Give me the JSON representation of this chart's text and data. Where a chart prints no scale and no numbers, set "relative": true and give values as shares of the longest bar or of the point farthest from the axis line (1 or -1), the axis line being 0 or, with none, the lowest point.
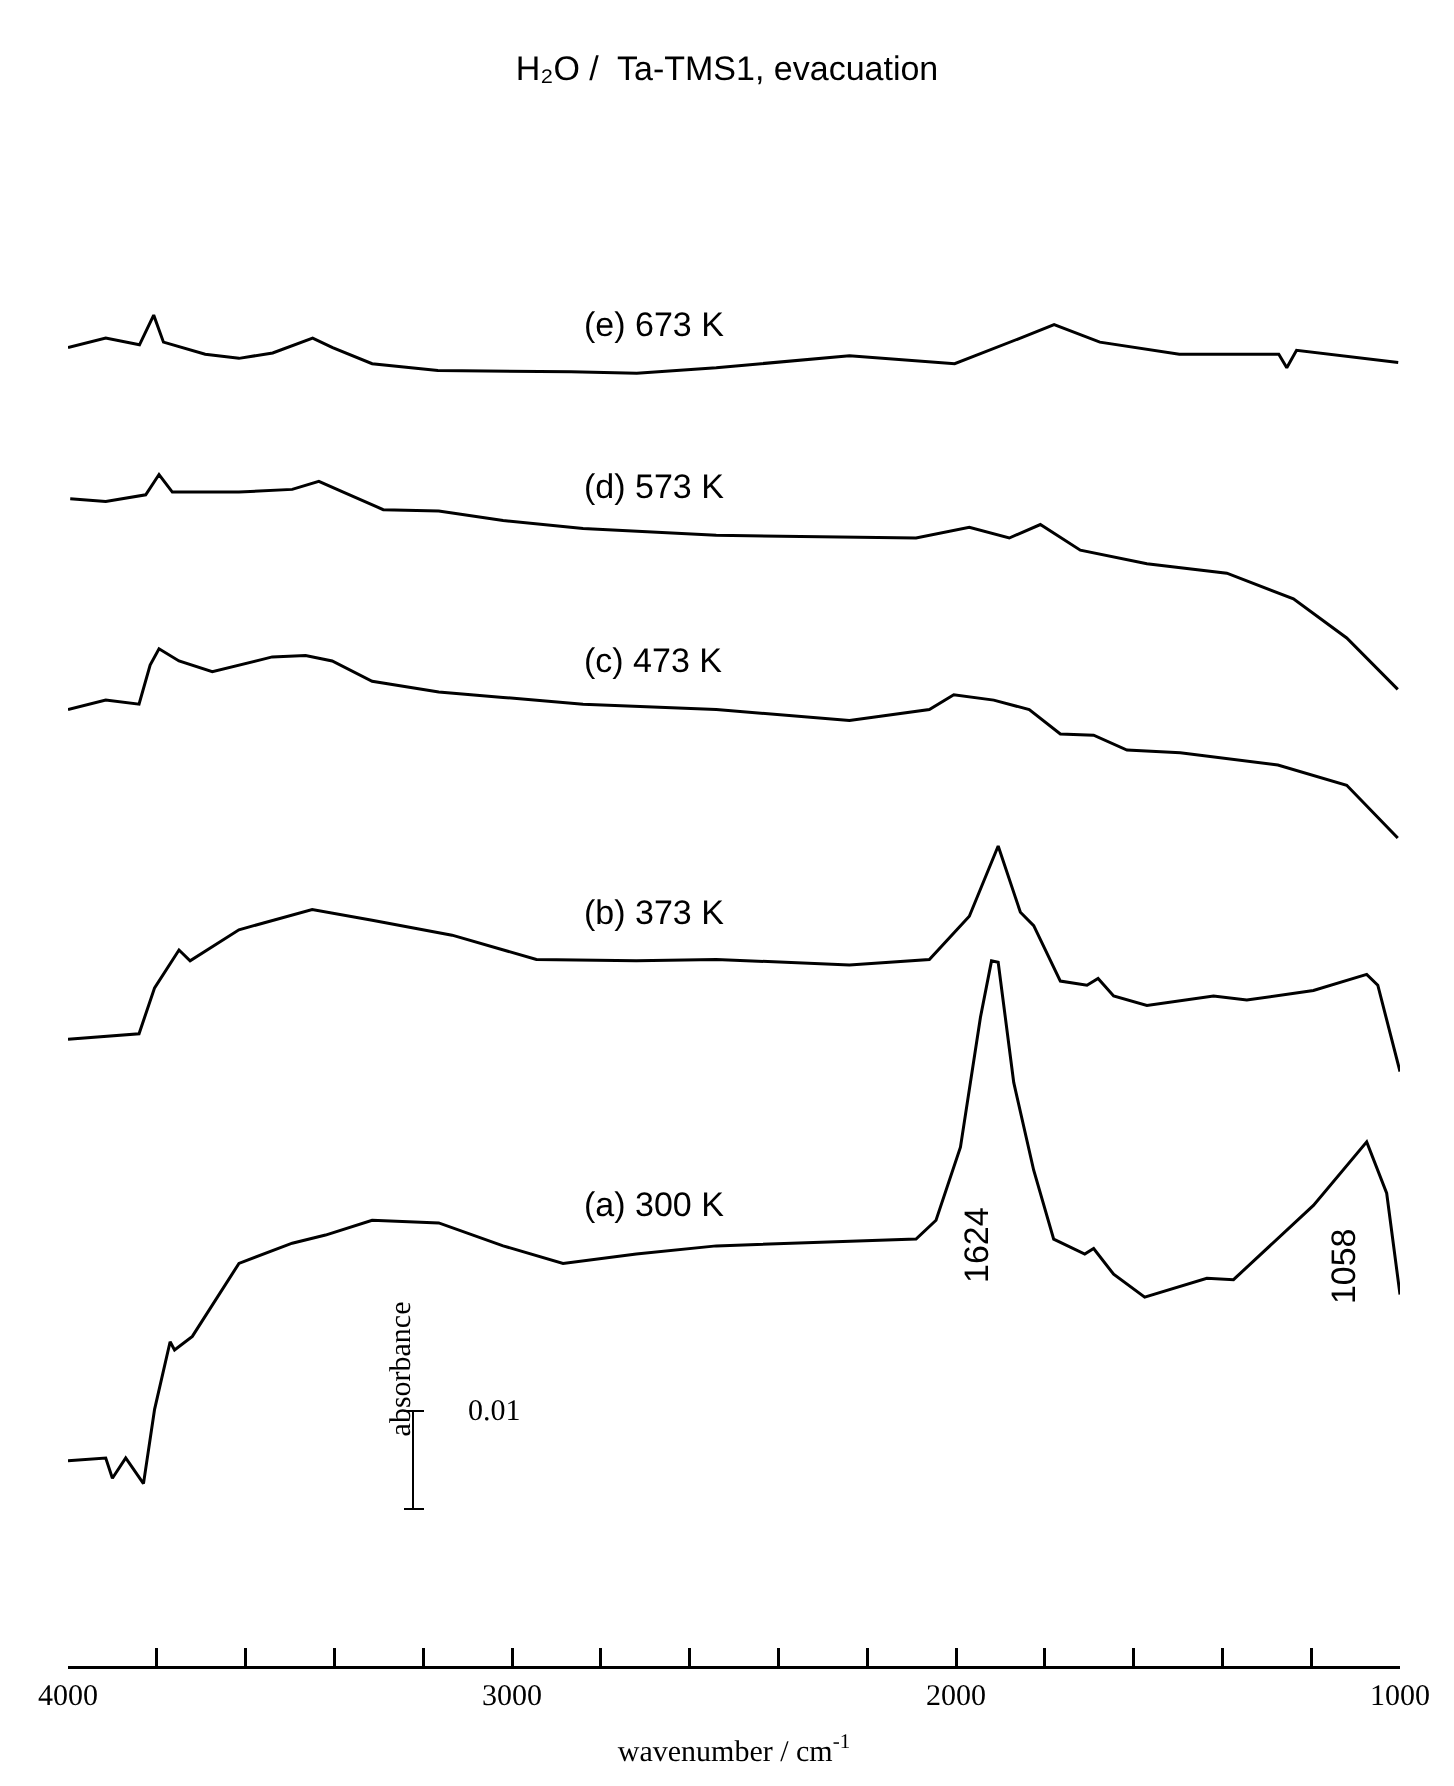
{
  "chart_data": {
    "type": "line",
    "title": "H₂O /  Ta-TMS1, evacuation",
    "xlabel": "wavenumber / cm$^{-1}$",
    "relative": true,
    "tick_labels": "x",
    "legend": false,
    "xlim": [
      4000,
      1000
    ],
    "xticks": [
      4000,
      {
        "value": 3800,
        "label": null
      },
      {
        "value": 3600,
        "label": null
      },
      {
        "value": 3400,
        "label": null
      },
      {
        "value": 3200,
        "label": null
      },
      3000,
      {
        "value": 2800,
        "label": null
      },
      {
        "value": 2600,
        "label": null
      },
      {
        "value": 2400,
        "label": null
      },
      {
        "value": 2200,
        "label": null
      },
      2000,
      {
        "value": 1800,
        "label": null
      },
      {
        "value": 1600,
        "label": null
      },
      {
        "value": 1400,
        "label": null
      },
      {
        "value": 1200,
        "label": null
      },
      1000
    ],
    "series": [
      {
        "name": "(e) 673 K",
        "color": "#000000",
        "x": [
          4000,
          3915,
          3839,
          3807,
          3785,
          3691,
          3615,
          3539,
          3449,
          3404,
          3315,
          3167,
          2867,
          2719,
          2540,
          2240,
          2003,
          1855,
          1779,
          1676,
          1497,
          1273,
          1255,
          1233,
          1004
        ],
        "values": [
          0.976,
          0.983,
          0.978,
          1.0,
          0.98,
          0.971,
          0.968,
          0.972,
          0.983,
          0.976,
          0.964,
          0.959,
          0.958,
          0.957,
          0.961,
          0.97,
          0.964,
          0.983,
          0.993,
          0.98,
          0.971,
          0.971,
          0.961,
          0.974,
          0.965
        ]
      },
      {
        "name": "(d) 573 K",
        "color": "#000000",
        "x": [
          3995,
          3915,
          3825,
          3795,
          3765,
          3615,
          3495,
          3435,
          3380,
          3290,
          3165,
          3020,
          2840,
          2540,
          2090,
          1970,
          1880,
          1810,
          1720,
          1570,
          1390,
          1240,
          1120,
          1005
        ],
        "values": [
          0.864,
          0.862,
          0.867,
          0.882,
          0.869,
          0.869,
          0.871,
          0.877,
          0.869,
          0.856,
          0.855,
          0.848,
          0.842,
          0.837,
          0.835,
          0.843,
          0.835,
          0.845,
          0.826,
          0.816,
          0.809,
          0.79,
          0.761,
          0.723
        ]
      },
      {
        "name": "(c) 473 K",
        "color": "#000000",
        "x": [
          4000,
          3915,
          3840,
          3815,
          3795,
          3750,
          3675,
          3540,
          3465,
          3405,
          3315,
          3165,
          3020,
          2840,
          2540,
          2240,
          2060,
          2005,
          1915,
          1835,
          1765,
          1690,
          1615,
          1495,
          1275,
          1120,
          1005
        ],
        "values": [
          0.708,
          0.715,
          0.712,
          0.741,
          0.753,
          0.744,
          0.736,
          0.747,
          0.748,
          0.744,
          0.729,
          0.721,
          0.717,
          0.712,
          0.708,
          0.7,
          0.708,
          0.719,
          0.715,
          0.708,
          0.69,
          0.689,
          0.678,
          0.676,
          0.667,
          0.652,
          0.613
        ]
      },
      {
        "name": "(b) 373 K",
        "color": "#000000",
        "x": [
          4000,
          3840,
          3805,
          3750,
          3725,
          3615,
          3450,
          3315,
          3135,
          2945,
          2720,
          2540,
          2240,
          2060,
          1970,
          1905,
          1855,
          1825,
          1765,
          1705,
          1680,
          1645,
          1570,
          1420,
          1345,
          1195,
          1075,
          1050,
          1000
        ],
        "values": [
          0.464,
          0.468,
          0.502,
          0.53,
          0.522,
          0.545,
          0.56,
          0.552,
          0.541,
          0.523,
          0.522,
          0.523,
          0.519,
          0.523,
          0.555,
          0.607,
          0.558,
          0.548,
          0.507,
          0.504,
          0.509,
          0.496,
          0.489,
          0.496,
          0.493,
          0.5,
          0.512,
          0.504,
          0.44
        ]
      },
      {
        "name": "(a) 300 K",
        "color": "#000000",
        "x": [
          4000,
          3915,
          3900,
          3870,
          3830,
          3805,
          3770,
          3760,
          3720,
          3615,
          3495,
          3420,
          3315,
          3165,
          3020,
          2885,
          2720,
          2540,
          2090,
          2045,
          1990,
          1945,
          1920,
          1905,
          1870,
          1825,
          1780,
          1710,
          1690,
          1645,
          1575,
          1435,
          1375,
          1195,
          1075,
          1030,
          1000
        ],
        "values": [
          0.152,
          0.154,
          0.139,
          0.154,
          0.135,
          0.19,
          0.24,
          0.234,
          0.244,
          0.298,
          0.313,
          0.319,
          0.33,
          0.328,
          0.311,
          0.298,
          0.305,
          0.311,
          0.316,
          0.33,
          0.384,
          0.48,
          0.522,
          0.521,
          0.432,
          0.367,
          0.316,
          0.305,
          0.309,
          0.29,
          0.273,
          0.287,
          0.286,
          0.341,
          0.388,
          0.35,
          0.275
        ]
      }
    ],
    "annotations": [
      "1624",
      "1058",
      "absorbance",
      "0.01"
    ]
  }
}
